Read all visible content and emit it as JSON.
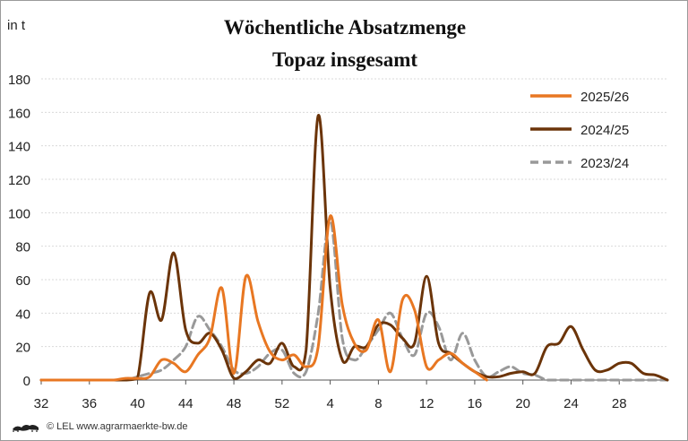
{
  "chart_data": {
    "type": "line",
    "title": "Wöchentliche Absatzmenge",
    "subtitle": "Topaz insgesamt",
    "ylabel": "in  t",
    "xlabel": "",
    "ylim": [
      0,
      180
    ],
    "yticks": [
      0,
      20,
      40,
      60,
      80,
      100,
      120,
      140,
      160,
      180
    ],
    "xtick_labels": [
      "32",
      "36",
      "40",
      "44",
      "48",
      "52",
      "4",
      "8",
      "12",
      "16",
      "20",
      "24",
      "28"
    ],
    "grid": true,
    "legend_position": "top-right",
    "series": [
      {
        "name": "2025/26",
        "color": "#e87722",
        "dash": "solid",
        "values": [
          0,
          0,
          0,
          0,
          0,
          0,
          0,
          1,
          1,
          2,
          12,
          10,
          5,
          15,
          25,
          55,
          4,
          62,
          35,
          17,
          12,
          15,
          8,
          20,
          98,
          45,
          22,
          18,
          36,
          5,
          48,
          42,
          8,
          12,
          16,
          10,
          5,
          0
        ]
      },
      {
        "name": "2024/25",
        "color": "#6b3409",
        "dash": "solid",
        "values": [
          0,
          0,
          0,
          0,
          0,
          0,
          0,
          0,
          1,
          52,
          36,
          76,
          30,
          22,
          28,
          18,
          1,
          5,
          12,
          10,
          22,
          8,
          18,
          158,
          55,
          12,
          20,
          20,
          33,
          33,
          25,
          22,
          62,
          22,
          16,
          10,
          5,
          2,
          2,
          4,
          5,
          4,
          20,
          22,
          32,
          18,
          6,
          6,
          10,
          10,
          4,
          3,
          0
        ]
      },
      {
        "name": "2023/24",
        "color": "#999999",
        "dash": "dashed",
        "values": [
          0,
          0,
          0,
          0,
          0,
          0,
          0,
          0,
          2,
          4,
          6,
          12,
          20,
          38,
          30,
          20,
          6,
          4,
          8,
          16,
          18,
          4,
          5,
          40,
          96,
          25,
          12,
          20,
          30,
          40,
          25,
          15,
          40,
          32,
          12,
          28,
          12,
          2,
          5,
          8,
          4,
          3,
          0,
          0,
          0,
          0,
          0,
          0,
          0,
          0,
          0,
          0,
          0
        ]
      }
    ]
  },
  "footer": {
    "logo_icon": "lion-logo-icon",
    "copyright": "© LEL www.agrarmaerkte-bw.de"
  }
}
